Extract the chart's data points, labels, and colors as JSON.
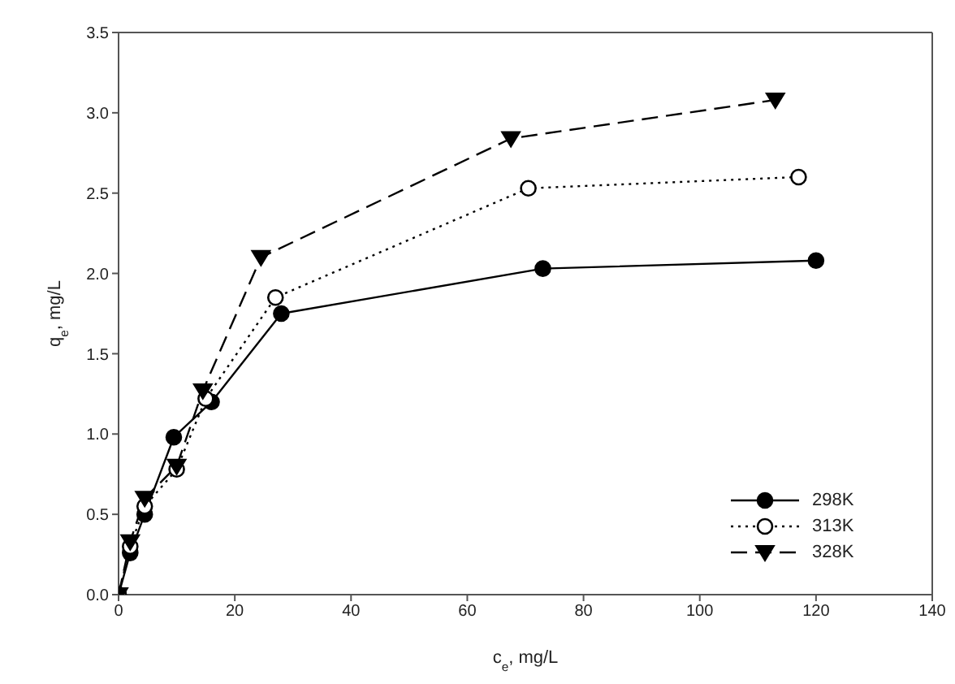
{
  "chart_data": {
    "type": "line",
    "xlabel": "c$_{e}$, mg/L",
    "ylabel": "q$_{e}$, mg/L",
    "xlim": [
      0,
      140
    ],
    "xticks": [
      0,
      20,
      40,
      60,
      80,
      100,
      120,
      140
    ],
    "ylim": [
      0,
      3.5
    ],
    "yticks": [
      {
        "value": 0,
        "label": "0.0"
      },
      {
        "value": 0.5,
        "label": "0.5"
      },
      {
        "value": 1,
        "label": "1.0"
      },
      {
        "value": 1.5,
        "label": "1.5"
      },
      {
        "value": 2,
        "label": "2.0"
      },
      {
        "value": 2.5,
        "label": "2.5"
      },
      {
        "value": 3,
        "label": "3.0"
      },
      {
        "value": 3.5,
        "label": "3.5"
      }
    ],
    "legend": "bottom right",
    "series": [
      {
        "name": "298K",
        "color": "#000000",
        "marker": "circle",
        "line_style": "solid",
        "x": [
          0,
          2,
          4.5,
          9.5,
          16,
          28,
          73,
          120
        ],
        "values": [
          0,
          0.26,
          0.5,
          0.98,
          1.2,
          1.75,
          2.03,
          2.08
        ]
      },
      {
        "name": "313K",
        "color": "#000000",
        "marker": "circle",
        "line_style": "dotted",
        "x": [
          0,
          2,
          4.5,
          10,
          15,
          27,
          70.5,
          117
        ],
        "values": [
          0,
          0.3,
          0.55,
          0.78,
          1.22,
          1.85,
          2.53,
          2.6
        ]
      },
      {
        "name": "328K",
        "color": "#000000",
        "marker": "triangle",
        "line_style": "dashed",
        "x": [
          0,
          2,
          4.5,
          10,
          14.5,
          24.5,
          67.5,
          113
        ],
        "values": [
          0,
          0.33,
          0.6,
          0.8,
          1.27,
          2.1,
          2.84,
          3.08
        ]
      }
    ]
  }
}
